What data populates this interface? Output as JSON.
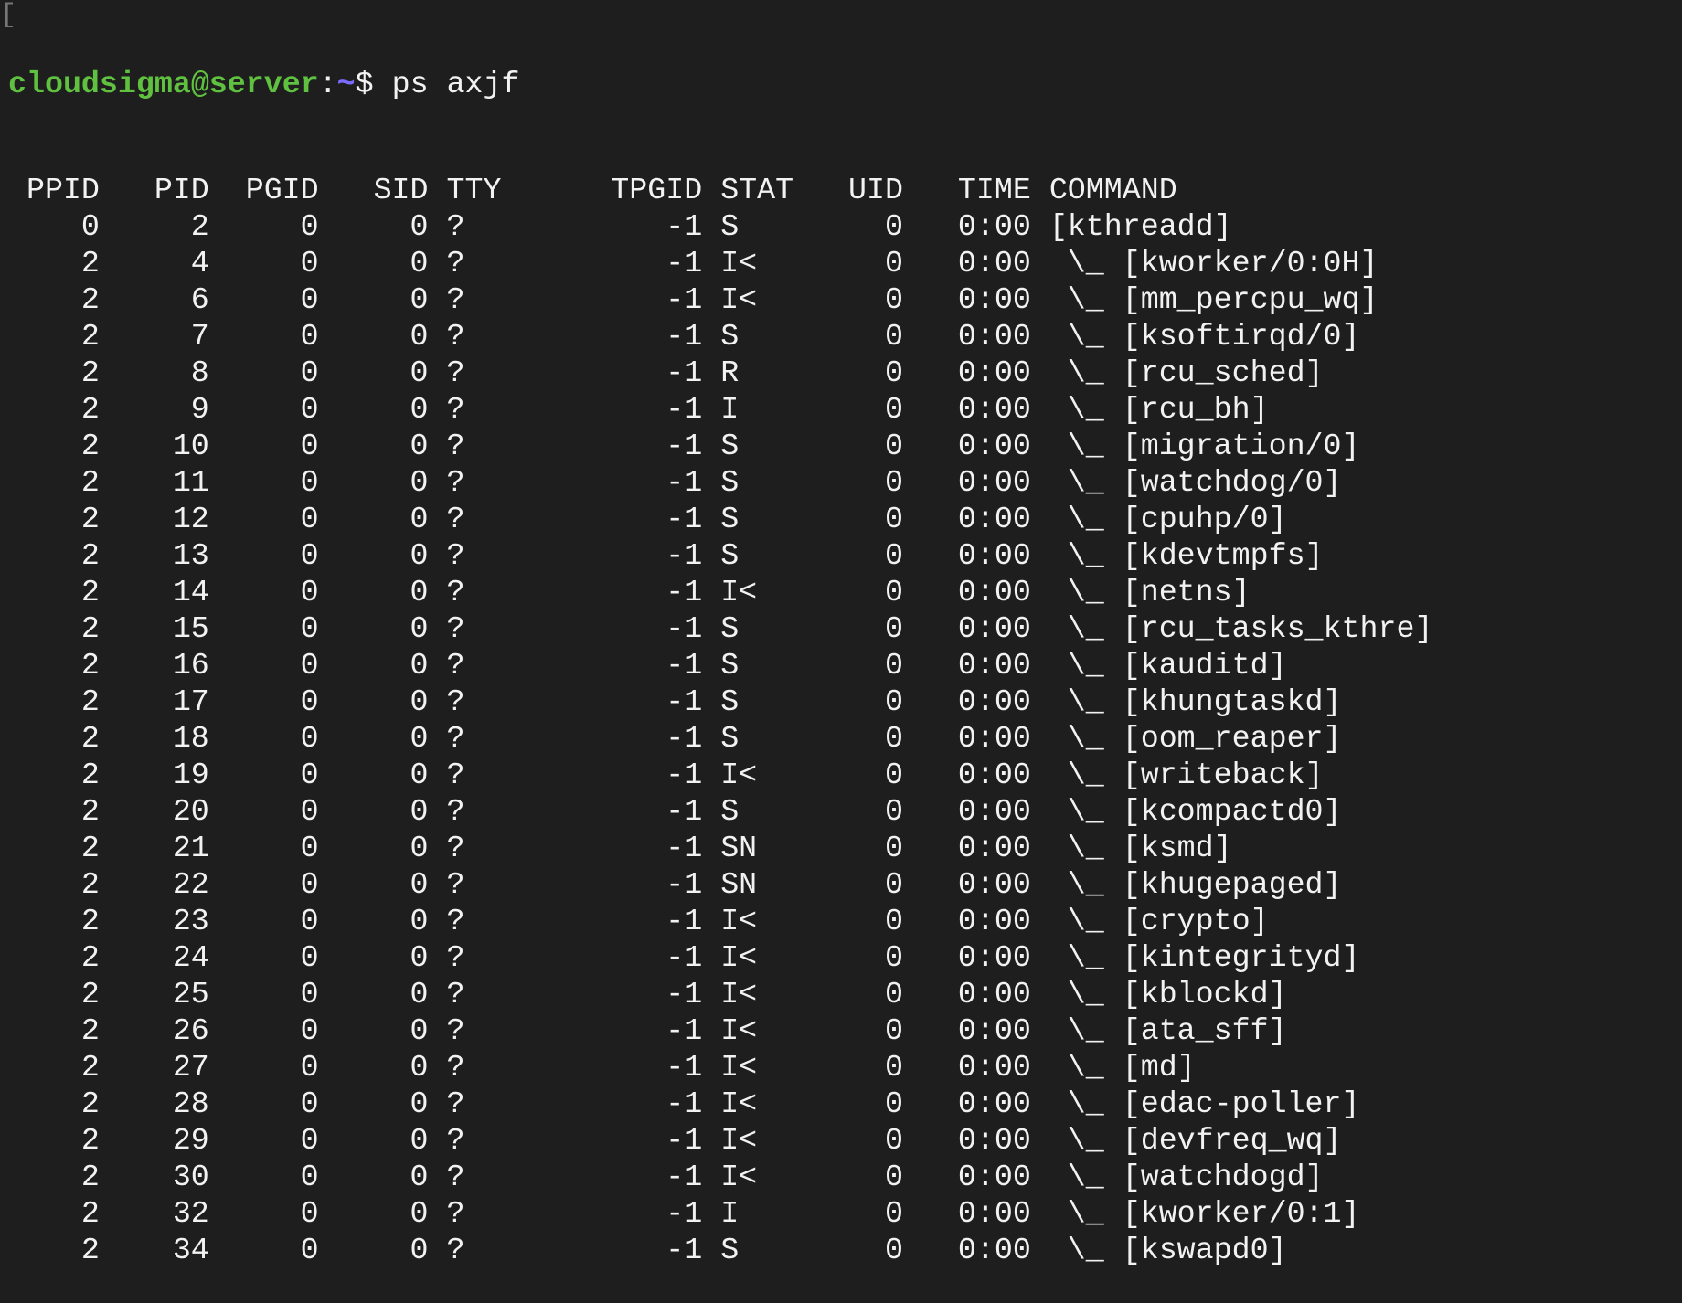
{
  "colors": {
    "background": "#1e1e1e",
    "text": "#f2f2f2",
    "prompt_user": "#5fc13f",
    "prompt_path": "#7a6cff"
  },
  "prompt": {
    "mark": "[",
    "user_host": "cloudsigma@server",
    "colon": ":",
    "path": "~",
    "symbol": "$ ",
    "command": "ps axjf"
  },
  "header": {
    "ppid": "PPID",
    "pid": "PID",
    "pgid": "PGID",
    "sid": "SID",
    "tty": "TTY",
    "tpgid": "TPGID",
    "stat": "STAT",
    "uid": "UID",
    "time": "TIME",
    "command": "COMMAND"
  },
  "rows": [
    {
      "ppid": "0",
      "pid": "2",
      "pgid": "0",
      "sid": "0",
      "tty": "?",
      "tpgid": "-1",
      "stat": "S",
      "uid": "0",
      "time": "0:00",
      "command": "[kthreadd]"
    },
    {
      "ppid": "2",
      "pid": "4",
      "pgid": "0",
      "sid": "0",
      "tty": "?",
      "tpgid": "-1",
      "stat": "I<",
      "uid": "0",
      "time": "0:00",
      "command": "\\_ [kworker/0:0H]"
    },
    {
      "ppid": "2",
      "pid": "6",
      "pgid": "0",
      "sid": "0",
      "tty": "?",
      "tpgid": "-1",
      "stat": "I<",
      "uid": "0",
      "time": "0:00",
      "command": "\\_ [mm_percpu_wq]"
    },
    {
      "ppid": "2",
      "pid": "7",
      "pgid": "0",
      "sid": "0",
      "tty": "?",
      "tpgid": "-1",
      "stat": "S",
      "uid": "0",
      "time": "0:00",
      "command": "\\_ [ksoftirqd/0]"
    },
    {
      "ppid": "2",
      "pid": "8",
      "pgid": "0",
      "sid": "0",
      "tty": "?",
      "tpgid": "-1",
      "stat": "R",
      "uid": "0",
      "time": "0:00",
      "command": "\\_ [rcu_sched]"
    },
    {
      "ppid": "2",
      "pid": "9",
      "pgid": "0",
      "sid": "0",
      "tty": "?",
      "tpgid": "-1",
      "stat": "I",
      "uid": "0",
      "time": "0:00",
      "command": "\\_ [rcu_bh]"
    },
    {
      "ppid": "2",
      "pid": "10",
      "pgid": "0",
      "sid": "0",
      "tty": "?",
      "tpgid": "-1",
      "stat": "S",
      "uid": "0",
      "time": "0:00",
      "command": "\\_ [migration/0]"
    },
    {
      "ppid": "2",
      "pid": "11",
      "pgid": "0",
      "sid": "0",
      "tty": "?",
      "tpgid": "-1",
      "stat": "S",
      "uid": "0",
      "time": "0:00",
      "command": "\\_ [watchdog/0]"
    },
    {
      "ppid": "2",
      "pid": "12",
      "pgid": "0",
      "sid": "0",
      "tty": "?",
      "tpgid": "-1",
      "stat": "S",
      "uid": "0",
      "time": "0:00",
      "command": "\\_ [cpuhp/0]"
    },
    {
      "ppid": "2",
      "pid": "13",
      "pgid": "0",
      "sid": "0",
      "tty": "?",
      "tpgid": "-1",
      "stat": "S",
      "uid": "0",
      "time": "0:00",
      "command": "\\_ [kdevtmpfs]"
    },
    {
      "ppid": "2",
      "pid": "14",
      "pgid": "0",
      "sid": "0",
      "tty": "?",
      "tpgid": "-1",
      "stat": "I<",
      "uid": "0",
      "time": "0:00",
      "command": "\\_ [netns]"
    },
    {
      "ppid": "2",
      "pid": "15",
      "pgid": "0",
      "sid": "0",
      "tty": "?",
      "tpgid": "-1",
      "stat": "S",
      "uid": "0",
      "time": "0:00",
      "command": "\\_ [rcu_tasks_kthre]"
    },
    {
      "ppid": "2",
      "pid": "16",
      "pgid": "0",
      "sid": "0",
      "tty": "?",
      "tpgid": "-1",
      "stat": "S",
      "uid": "0",
      "time": "0:00",
      "command": "\\_ [kauditd]"
    },
    {
      "ppid": "2",
      "pid": "17",
      "pgid": "0",
      "sid": "0",
      "tty": "?",
      "tpgid": "-1",
      "stat": "S",
      "uid": "0",
      "time": "0:00",
      "command": "\\_ [khungtaskd]"
    },
    {
      "ppid": "2",
      "pid": "18",
      "pgid": "0",
      "sid": "0",
      "tty": "?",
      "tpgid": "-1",
      "stat": "S",
      "uid": "0",
      "time": "0:00",
      "command": "\\_ [oom_reaper]"
    },
    {
      "ppid": "2",
      "pid": "19",
      "pgid": "0",
      "sid": "0",
      "tty": "?",
      "tpgid": "-1",
      "stat": "I<",
      "uid": "0",
      "time": "0:00",
      "command": "\\_ [writeback]"
    },
    {
      "ppid": "2",
      "pid": "20",
      "pgid": "0",
      "sid": "0",
      "tty": "?",
      "tpgid": "-1",
      "stat": "S",
      "uid": "0",
      "time": "0:00",
      "command": "\\_ [kcompactd0]"
    },
    {
      "ppid": "2",
      "pid": "21",
      "pgid": "0",
      "sid": "0",
      "tty": "?",
      "tpgid": "-1",
      "stat": "SN",
      "uid": "0",
      "time": "0:00",
      "command": "\\_ [ksmd]"
    },
    {
      "ppid": "2",
      "pid": "22",
      "pgid": "0",
      "sid": "0",
      "tty": "?",
      "tpgid": "-1",
      "stat": "SN",
      "uid": "0",
      "time": "0:00",
      "command": "\\_ [khugepaged]"
    },
    {
      "ppid": "2",
      "pid": "23",
      "pgid": "0",
      "sid": "0",
      "tty": "?",
      "tpgid": "-1",
      "stat": "I<",
      "uid": "0",
      "time": "0:00",
      "command": "\\_ [crypto]"
    },
    {
      "ppid": "2",
      "pid": "24",
      "pgid": "0",
      "sid": "0",
      "tty": "?",
      "tpgid": "-1",
      "stat": "I<",
      "uid": "0",
      "time": "0:00",
      "command": "\\_ [kintegrityd]"
    },
    {
      "ppid": "2",
      "pid": "25",
      "pgid": "0",
      "sid": "0",
      "tty": "?",
      "tpgid": "-1",
      "stat": "I<",
      "uid": "0",
      "time": "0:00",
      "command": "\\_ [kblockd]"
    },
    {
      "ppid": "2",
      "pid": "26",
      "pgid": "0",
      "sid": "0",
      "tty": "?",
      "tpgid": "-1",
      "stat": "I<",
      "uid": "0",
      "time": "0:00",
      "command": "\\_ [ata_sff]"
    },
    {
      "ppid": "2",
      "pid": "27",
      "pgid": "0",
      "sid": "0",
      "tty": "?",
      "tpgid": "-1",
      "stat": "I<",
      "uid": "0",
      "time": "0:00",
      "command": "\\_ [md]"
    },
    {
      "ppid": "2",
      "pid": "28",
      "pgid": "0",
      "sid": "0",
      "tty": "?",
      "tpgid": "-1",
      "stat": "I<",
      "uid": "0",
      "time": "0:00",
      "command": "\\_ [edac-poller]"
    },
    {
      "ppid": "2",
      "pid": "29",
      "pgid": "0",
      "sid": "0",
      "tty": "?",
      "tpgid": "-1",
      "stat": "I<",
      "uid": "0",
      "time": "0:00",
      "command": "\\_ [devfreq_wq]"
    },
    {
      "ppid": "2",
      "pid": "30",
      "pgid": "0",
      "sid": "0",
      "tty": "?",
      "tpgid": "-1",
      "stat": "I<",
      "uid": "0",
      "time": "0:00",
      "command": "\\_ [watchdogd]"
    },
    {
      "ppid": "2",
      "pid": "32",
      "pgid": "0",
      "sid": "0",
      "tty": "?",
      "tpgid": "-1",
      "stat": "I",
      "uid": "0",
      "time": "0:00",
      "command": "\\_ [kworker/0:1]"
    },
    {
      "ppid": "2",
      "pid": "34",
      "pgid": "0",
      "sid": "0",
      "tty": "?",
      "tpgid": "-1",
      "stat": "S",
      "uid": "0",
      "time": "0:00",
      "command": "\\_ [kswapd0]"
    }
  ]
}
